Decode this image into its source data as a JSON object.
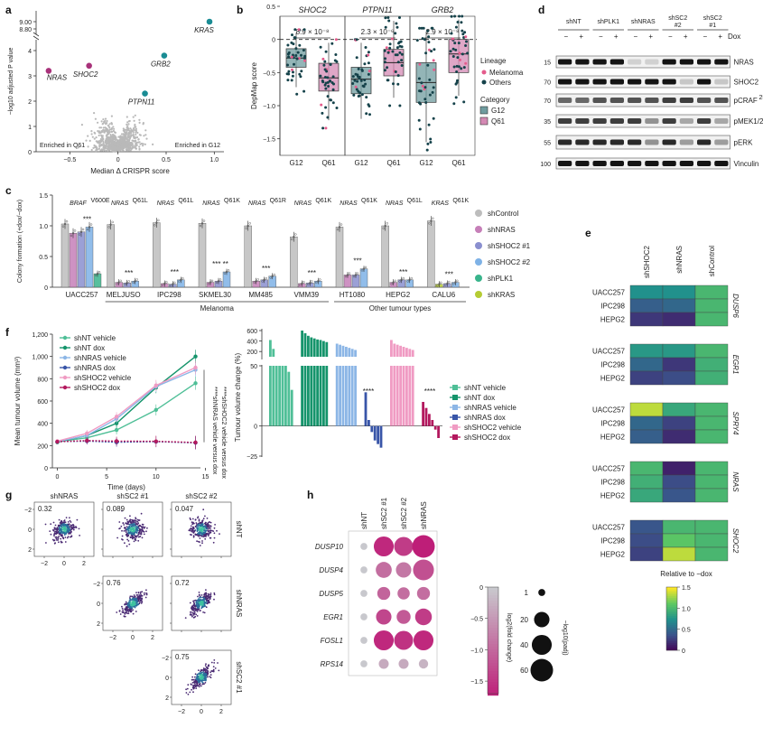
{
  "colors": {
    "g12": "#6f9c9f",
    "q61": "#d489b4",
    "melanoma_dot": "#e45c8c",
    "others_dot": "#15424a",
    "shControl": "#bdbdbd",
    "shNRAS": "#c67fb8",
    "shSHOC2_1": "#8a8fcf",
    "shSHOC2_2": "#7eb2e6",
    "shPLK1": "#39b48c",
    "shKRAS": "#b5cc34",
    "shNT_vehicle": "#4fbf97",
    "shNT_dox": "#15946b",
    "shNRAS_vehicle": "#8cb6e6",
    "shNRAS_dox": "#3855a8",
    "shSHOC2_vehicle": "#f09bc3",
    "shSHOC2_dox": "#b3195e"
  },
  "chart_data": [
    {
      "panel": "a",
      "type": "scatter",
      "xlabel": "Median Δ CRISPR score",
      "ylabel": "−log10 adjusted P value",
      "xlim": [
        -0.85,
        1.1
      ],
      "ylim": [
        0,
        9.3
      ],
      "xticks": [
        "−0.5",
        "0",
        "0.5",
        "1.0"
      ],
      "yticks": [
        "0",
        "1",
        "2",
        "3",
        "4",
        "8.80",
        "9.00"
      ],
      "annotations": [
        "Enriched in Q61",
        "Enriched in G12"
      ],
      "highlighted": [
        {
          "label": "KRAS",
          "x": 0.95,
          "y": 9.0,
          "group": "G12"
        },
        {
          "label": "GRB2",
          "x": 0.48,
          "y": 3.8,
          "group": "G12"
        },
        {
          "label": "PTPN11",
          "x": 0.28,
          "y": 2.3,
          "group": "G12"
        },
        {
          "label": "NRAS",
          "x": -0.72,
          "y": 3.2,
          "group": "Q61"
        },
        {
          "label": "SHOC2",
          "x": -0.3,
          "y": 3.4,
          "group": "Q61"
        }
      ]
    },
    {
      "panel": "b",
      "type": "box",
      "ylabel": "DepMap score",
      "ylim": [
        -1.75,
        0.35
      ],
      "yticks": [
        "0.5",
        "0",
        "−0.5",
        "−1.0",
        "−1.5"
      ],
      "facets": [
        {
          "gene": "SHOC2",
          "pvalue": "8.9 × 10⁻⁸",
          "G12": {
            "q1": -0.42,
            "median": -0.28,
            "q3": -0.14,
            "min": -0.72,
            "max": 0.1
          },
          "Q61": {
            "q1": -0.78,
            "median": -0.58,
            "q3": -0.36,
            "min": -1.22,
            "max": -0.05
          }
        },
        {
          "gene": "PTPN11",
          "pvalue": "2.3 × 10⁻⁶",
          "G12": {
            "q1": -0.82,
            "median": -0.6,
            "q3": -0.42,
            "min": -1.2,
            "max": -0.05
          },
          "Q61": {
            "q1": -0.55,
            "median": -0.35,
            "q3": -0.15,
            "min": -0.88,
            "max": 0.28
          }
        },
        {
          "gene": "GRB2",
          "pvalue": "2.9 × 10⁻⁸",
          "G12": {
            "q1": -0.95,
            "median": -0.65,
            "q3": -0.35,
            "min": -1.55,
            "max": 0.12
          },
          "Q61": {
            "q1": -0.5,
            "median": -0.22,
            "q3": 0.0,
            "min": -0.85,
            "max": 0.3
          }
        }
      ],
      "categories": [
        "G12",
        "Q61"
      ],
      "legend": {
        "lineage_title": "Lineage",
        "lineage": [
          "Melanoma",
          "Others"
        ],
        "category_title": "Category",
        "category": [
          "G12",
          "Q61"
        ]
      }
    },
    {
      "panel": "c",
      "type": "bar",
      "ylabel": "Colony formation (+dox/−dox)",
      "ylim": [
        0,
        1.5
      ],
      "yticks": [
        "0",
        "0.5",
        "1.0",
        "1.5"
      ],
      "cell_lines": [
        {
          "name": "UACC257",
          "mutation": "BRAF",
          "site": "V600E",
          "values": [
            1.03,
            0.88,
            0.9,
            0.98,
            0.22
          ],
          "series": [
            "shControl",
            "shNRAS",
            "shSHOC2_1",
            "shSHOC2_2",
            "shPLK1"
          ],
          "stars": "***"
        },
        {
          "name": "MELJUSO",
          "mutation": "NRAS",
          "site": "Q61L",
          "values": [
            1.02,
            0.08,
            0.07,
            0.1
          ],
          "series": [
            "shControl",
            "shNRAS",
            "shSHOC2_1",
            "shSHOC2_2"
          ],
          "stars": "***"
        },
        {
          "name": "IPC298",
          "mutation": "NRAS",
          "site": "Q61L",
          "values": [
            1.05,
            0.06,
            0.05,
            0.12
          ],
          "series": [
            "shControl",
            "shNRAS",
            "shSHOC2_1",
            "shSHOC2_2"
          ],
          "stars": "***"
        },
        {
          "name": "SKMEL30",
          "mutation": "NRAS",
          "site": "Q61K",
          "values": [
            1.04,
            0.08,
            0.1,
            0.25
          ],
          "series": [
            "shControl",
            "shNRAS",
            "shSHOC2_1",
            "shSHOC2_2"
          ],
          "stars": "*** **"
        },
        {
          "name": "MM485",
          "mutation": "NRAS",
          "site": "Q61R",
          "values": [
            1.0,
            0.1,
            0.12,
            0.18
          ],
          "series": [
            "shControl",
            "shNRAS",
            "shSHOC2_1",
            "shSHOC2_2"
          ],
          "stars": "***"
        },
        {
          "name": "VMM39",
          "mutation": "NRAS",
          "site": "Q61K",
          "values": [
            0.82,
            0.06,
            0.07,
            0.1
          ],
          "series": [
            "shControl",
            "shNRAS",
            "shSHOC2_1",
            "shSHOC2_2"
          ],
          "stars": "***"
        },
        {
          "name": "HT1080",
          "mutation": "NRAS",
          "site": "Q61K",
          "values": [
            0.98,
            0.2,
            0.2,
            0.3
          ],
          "series": [
            "shControl",
            "shNRAS",
            "shSHOC2_1",
            "shSHOC2_2"
          ],
          "stars": "***"
        },
        {
          "name": "HEPG2",
          "mutation": "NRAS",
          "site": "Q61L",
          "values": [
            1.0,
            0.08,
            0.12,
            0.12
          ],
          "series": [
            "shControl",
            "shNRAS",
            "shSHOC2_1",
            "shSHOC2_2"
          ],
          "stars": "***"
        },
        {
          "name": "CALU6",
          "mutation": "KRAS",
          "site": "Q61K",
          "values": [
            1.08,
            0.05,
            0.06,
            0.08
          ],
          "series": [
            "shControl",
            "shKRAS",
            "shSHOC2_1",
            "shSHOC2_2"
          ],
          "stars": "***"
        }
      ],
      "groups": [
        "Melanoma",
        "Other tumour types"
      ],
      "legend": [
        "shControl",
        "shNRAS",
        "shSHOC2 #1",
        "shSHOC2 #2",
        "shPLK1",
        "shKRAS"
      ]
    },
    {
      "panel": "d",
      "type": "table",
      "columns": [
        "shNT",
        "shPLK1",
        "shNRAS",
        "shSC2 #2",
        "shSC2 #1"
      ],
      "dox_label": "Dox",
      "dox_states": [
        "−",
        "+"
      ],
      "rows": [
        {
          "label": "NRAS",
          "mw": "15",
          "kd": [
            1,
            1,
            1,
            1,
            0.1,
            0.1,
            1,
            1,
            1,
            1
          ]
        },
        {
          "label": "SHOC2",
          "mw": "70",
          "kd": [
            1,
            1,
            1,
            1,
            1,
            1,
            1,
            0.15,
            1,
            0.15
          ]
        },
        {
          "label": "pCRAF",
          "sup": "259",
          "mw": "70",
          "kd": [
            0.6,
            0.6,
            0.7,
            0.7,
            0.7,
            0.7,
            0.8,
            0.8,
            0.7,
            0.7
          ]
        },
        {
          "label": "pMEK1/2",
          "mw": "35",
          "kd": [
            0.8,
            0.8,
            0.8,
            0.8,
            0.8,
            0.4,
            0.8,
            0.3,
            0.8,
            0.3
          ]
        },
        {
          "label": "pERK",
          "mw": "55",
          "kd": [
            0.9,
            0.9,
            0.9,
            0.9,
            0.9,
            0.4,
            0.9,
            0.35,
            0.9,
            0.35
          ]
        },
        {
          "label": "Vinculin",
          "mw": "100",
          "kd": [
            1,
            1,
            1,
            1,
            1,
            1,
            1,
            1,
            1,
            1
          ]
        }
      ],
      "mw_markers": [
        "15",
        "70",
        "70",
        "35",
        "55",
        "100"
      ]
    },
    {
      "panel": "e",
      "type": "heatmap",
      "columns": [
        "shSHOC2",
        "shNRAS",
        "shControl"
      ],
      "blocks": [
        {
          "gene": "DUSP6",
          "rows": [
            "UACC257",
            "IPC298",
            "HEPG2"
          ],
          "values": [
            [
              0.75,
              0.75,
              1.0
            ],
            [
              0.45,
              0.5,
              1.0
            ],
            [
              0.25,
              0.2,
              1.0
            ]
          ]
        },
        {
          "gene": "EGR1",
          "rows": [
            "UACC257",
            "IPC298",
            "HEPG2"
          ],
          "values": [
            [
              0.8,
              0.8,
              1.0
            ],
            [
              0.5,
              0.25,
              0.95
            ],
            [
              0.3,
              0.35,
              0.95
            ]
          ]
        },
        {
          "gene": "SPRY4",
          "rows": [
            "UACC257",
            "IPC298",
            "HEPG2"
          ],
          "values": [
            [
              1.35,
              0.9,
              1.0
            ],
            [
              0.5,
              0.3,
              1.0
            ],
            [
              0.45,
              0.2,
              1.0
            ]
          ]
        },
        {
          "gene": "NRAS",
          "rows": [
            "UACC257",
            "IPC298",
            "HEPG2"
          ],
          "values": [
            [
              1.0,
              0.15,
              1.0
            ],
            [
              0.95,
              0.35,
              1.0
            ],
            [
              0.9,
              0.4,
              1.0
            ]
          ]
        },
        {
          "gene": "SHOC2",
          "rows": [
            "UACC257",
            "IPC298",
            "HEPG2"
          ],
          "values": [
            [
              0.4,
              1.0,
              1.0
            ],
            [
              0.35,
              1.1,
              1.0
            ],
            [
              0.3,
              1.35,
              1.0
            ]
          ]
        }
      ],
      "colorbar_title": "Relative to −dox",
      "colorbar_ticks": [
        "1.5",
        "1.0",
        "0.5",
        "0"
      ]
    },
    {
      "panel": "f_left",
      "type": "line",
      "xlabel": "Time (days)",
      "ylabel": "Mean tumour volume (mm³)",
      "x": [
        0,
        3,
        6,
        10,
        14
      ],
      "xlim": [
        -0.5,
        14.5
      ],
      "ylim": [
        0,
        1200
      ],
      "xticks": [
        "0",
        "5",
        "10",
        "15"
      ],
      "yticks": [
        "0",
        "200",
        "400",
        "600",
        "800",
        "1,000",
        "1,200"
      ],
      "series": [
        {
          "name": "shNT vehicle",
          "values": [
            235,
            270,
            340,
            520,
            760
          ]
        },
        {
          "name": "shNT dox",
          "values": [
            230,
            290,
            400,
            720,
            1000
          ]
        },
        {
          "name": "shNRAS vehicle",
          "values": [
            235,
            290,
            440,
            730,
            880
          ]
        },
        {
          "name": "shNRAS dox",
          "values": [
            235,
            240,
            230,
            235,
            225
          ]
        },
        {
          "name": "shSHOC2 vehicle",
          "values": [
            240,
            310,
            460,
            740,
            900
          ]
        },
        {
          "name": "shSHOC2 dox",
          "values": [
            235,
            245,
            240,
            238,
            228
          ]
        }
      ],
      "stats": [
        "****shNRAS vehicle versus dox",
        "****shSHOC2 vehicle versus dox"
      ]
    },
    {
      "panel": "f_right",
      "type": "bar",
      "ylabel": "Tumour volume change (%)",
      "yticks": [
        "600",
        "400",
        "200",
        "50",
        "0",
        "−25"
      ],
      "groups": [
        {
          "name": "shNT vehicle",
          "values": [
            420,
            250,
            90,
            70,
            50,
            50,
            45,
            30
          ]
        },
        {
          "name": "shNT dox",
          "values": [
            600,
            550,
            500,
            470,
            450,
            430,
            420,
            400,
            380
          ]
        },
        {
          "name": "shNRAS vehicle",
          "values": [
            350,
            330,
            310,
            290,
            270,
            250,
            230
          ]
        },
        {
          "name": "shNRAS dox",
          "values": [
            28,
            5,
            -5,
            -12,
            -15,
            -18
          ]
        },
        {
          "name": "shSHOC2 vehicle",
          "values": [
            420,
            350,
            330,
            310,
            290,
            270,
            250,
            230
          ]
        },
        {
          "name": "shSHOC2 dox",
          "values": [
            20,
            15,
            10,
            5,
            -3,
            -10
          ]
        }
      ],
      "stars": [
        "****",
        "****"
      ],
      "legend": [
        "shNT vehicle",
        "shNT dox",
        "shNRAS vehicle",
        "shNRAS dox",
        "shSHOC2 vehicle",
        "shSHOC2 dox"
      ]
    },
    {
      "panel": "g",
      "type": "scatter",
      "columns": [
        "shNRAS",
        "shSC2 #1",
        "shSC2 #2"
      ],
      "rows": [
        "shNT",
        "shNRAS",
        "shSC2 #1"
      ],
      "cells": [
        {
          "row": 0,
          "col": 0,
          "R": "0.32"
        },
        {
          "row": 0,
          "col": 1,
          "R": "0.089"
        },
        {
          "row": 0,
          "col": 2,
          "R": "0.047"
        },
        {
          "row": 1,
          "col": 1,
          "R": "0.76"
        },
        {
          "row": 1,
          "col": 2,
          "R": "0.72"
        },
        {
          "row": 2,
          "col": 2,
          "R": "0.75"
        }
      ],
      "xticks": [
        "−2",
        "0",
        "2"
      ],
      "yticks": [
        "2",
        "0",
        "−2"
      ]
    },
    {
      "panel": "h",
      "type": "heatmap",
      "columns": [
        "shNT",
        "shSC2 #1",
        "shSC2 #2",
        "shNRAS"
      ],
      "rows": [
        {
          "gene": "DUSP10",
          "fc": [
            0,
            -1.6,
            -1.4,
            -1.7
          ],
          "padj": [
            1,
            40,
            35,
            60
          ]
        },
        {
          "gene": "DUSP4",
          "fc": [
            0,
            -0.9,
            -0.8,
            -1.2
          ],
          "padj": [
            1,
            22,
            20,
            45
          ]
        },
        {
          "gene": "DUSP5",
          "fc": [
            0,
            -1.0,
            -0.9,
            -0.9
          ],
          "padj": [
            1,
            12,
            10,
            12
          ]
        },
        {
          "gene": "EGR1",
          "fc": [
            0,
            -1.3,
            -1.1,
            -1.4
          ],
          "padj": [
            1,
            20,
            15,
            25
          ]
        },
        {
          "gene": "FOSL1",
          "fc": [
            0,
            -1.6,
            -1.5,
            -1.6
          ],
          "padj": [
            1,
            40,
            35,
            40
          ]
        },
        {
          "gene": "RPS14",
          "fc": [
            0,
            -0.3,
            -0.3,
            -0.2
          ],
          "padj": [
            1,
            5,
            5,
            4
          ]
        }
      ],
      "colorbar_title": "log2(fold change)",
      "colorbar_ticks": [
        "0",
        "−0.5",
        "−1.0",
        "−1.5"
      ],
      "size_legend_title": "−log10(padj)",
      "size_legend": [
        "1",
        "20",
        "40",
        "60"
      ]
    }
  ]
}
